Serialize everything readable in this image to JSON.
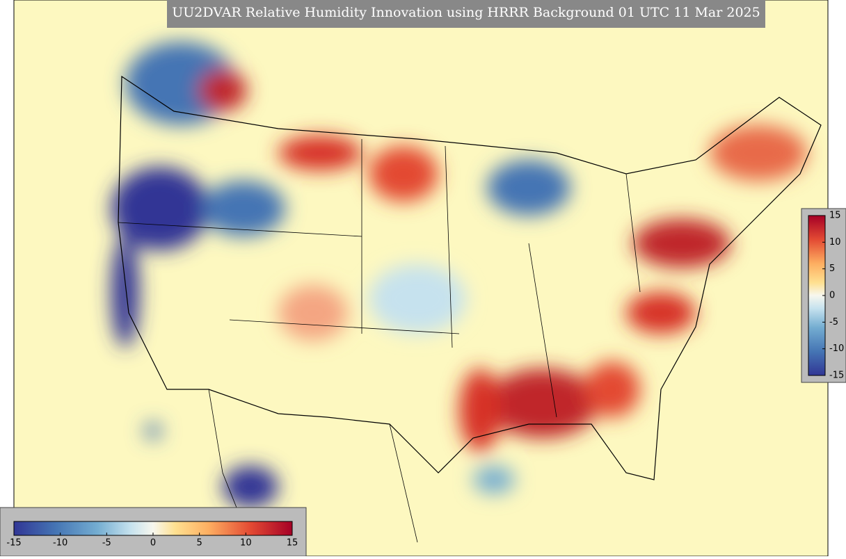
{
  "title": "UU2DVAR Relative Humidity Innovation using HRRR Background 01 UTC 11 Mar 2025",
  "colorbar": {
    "limits": [
      -15,
      15
    ],
    "ticks": [
      -15,
      -10,
      -5,
      0,
      5,
      10,
      15
    ]
  }
}
